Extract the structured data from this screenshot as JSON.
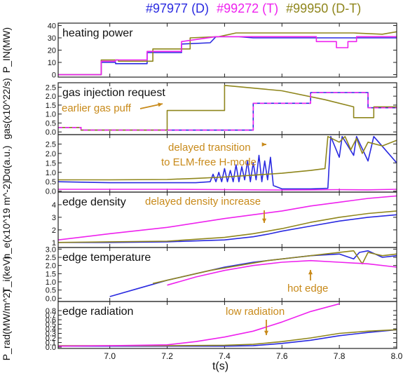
{
  "legend": [
    {
      "label": "#97977 (D)",
      "color": "#2a2ae0"
    },
    {
      "label": "#99272 (T)",
      "color": "#ee22ee"
    },
    {
      "label": "#99950 (D-T)",
      "color": "#8f861c"
    }
  ],
  "x_label": "t(s)",
  "x_ticks": [
    "7.0",
    "7.2",
    "7.4",
    "7.6",
    "7.8",
    "8.0"
  ],
  "chart_data": [
    {
      "type": "line",
      "title": "heating power",
      "ylabel": "P_IN(MW)",
      "ylim": [
        -2,
        42
      ],
      "yticks": [
        "0",
        "10",
        "20",
        "30",
        "40"
      ],
      "annotations": [],
      "series": [
        {
          "name": "#97977 (D)",
          "x": [
            6.82,
            6.97,
            6.97,
            7.02,
            7.02,
            7.13,
            7.13,
            7.25,
            7.25,
            7.35,
            7.37,
            7.45,
            7.5,
            7.6,
            7.7,
            7.8,
            7.9,
            8.0
          ],
          "y": [
            0,
            0,
            10,
            10,
            9,
            9,
            18,
            18,
            25,
            26,
            31,
            31,
            30,
            30,
            30,
            30,
            30,
            30
          ]
        },
        {
          "name": "#99272 (T)",
          "x": [
            6.82,
            6.97,
            6.97,
            7.02,
            7.02,
            7.13,
            7.13,
            7.25,
            7.25,
            7.37,
            7.45,
            7.72,
            7.72,
            7.79,
            7.79,
            7.83,
            7.83,
            7.86,
            7.86,
            8.0
          ],
          "y": [
            0,
            0,
            11,
            11,
            12,
            12,
            19,
            19,
            27,
            31,
            31,
            31,
            27,
            27,
            22,
            22,
            27,
            27,
            31,
            31
          ]
        },
        {
          "name": "#99950 (D-T)",
          "x": [
            6.82,
            6.97,
            6.97,
            7.03,
            7.03,
            7.15,
            7.15,
            7.28,
            7.28,
            7.38,
            7.44,
            7.5,
            7.6,
            7.75,
            7.85,
            7.95,
            8.0
          ],
          "y": [
            0,
            0,
            12,
            12,
            11,
            11,
            21,
            21,
            30,
            31,
            34,
            34,
            34,
            34,
            34,
            33,
            35
          ]
        }
      ]
    },
    {
      "type": "line",
      "title": "gas injection request",
      "ylabel": "gas(x10^22/s)",
      "ylim": [
        -0.15,
        2.75
      ],
      "yticks": [
        "0.0",
        "0.5",
        "1.0",
        "1.5",
        "2.0",
        "2.5"
      ],
      "annotations": [
        "earlier gas puff"
      ],
      "series": [
        {
          "name": "#97977 (D)",
          "x": [
            6.82,
            6.9,
            6.9,
            7.2,
            7.5,
            7.5,
            7.7,
            7.7,
            7.9,
            7.9,
            8.0
          ],
          "y": [
            0.25,
            0.25,
            0.1,
            0.1,
            0.1,
            1.6,
            1.6,
            2.2,
            2.2,
            1.35,
            1.35
          ]
        },
        {
          "name": "#99272 (T)",
          "x": [
            6.82,
            6.9,
            6.9,
            7.2,
            7.5,
            7.5,
            7.7,
            7.7,
            7.9,
            7.9,
            8.0
          ],
          "y": [
            0.25,
            0.25,
            0.1,
            0.1,
            0.1,
            1.6,
            1.6,
            2.2,
            2.2,
            1.35,
            1.35
          ]
        },
        {
          "name": "#99950 (D-T)",
          "x": [
            6.82,
            6.9,
            6.9,
            7.2,
            7.2,
            7.4,
            7.4,
            7.6,
            7.75,
            7.85,
            7.85,
            7.92,
            7.92,
            8.0
          ],
          "y": [
            0.25,
            0.25,
            0.1,
            0.1,
            1.2,
            1.2,
            2.6,
            2.3,
            1.8,
            1.4,
            0.8,
            0.8,
            1.4,
            1.4
          ]
        }
      ]
    },
    {
      "type": "line",
      "title": "",
      "ylabel": "Dα(a.u.)",
      "ylim": [
        -0.05,
        3.0
      ],
      "yticks": [
        "0.0",
        "0.5",
        "1.0",
        "1.5",
        "2.0",
        "2.5"
      ],
      "annotations": [
        "delayed transition",
        "to ELM-free H-mode"
      ],
      "series": [
        {
          "name": "#97977 (D)",
          "x": [
            6.82,
            6.9,
            7.0,
            7.1,
            7.2,
            7.3,
            7.35,
            7.36,
            7.37,
            7.38,
            7.39,
            7.4,
            7.41,
            7.42,
            7.43,
            7.44,
            7.45,
            7.46,
            7.47,
            7.48,
            7.49,
            7.5,
            7.51,
            7.52,
            7.53,
            7.54,
            7.55,
            7.56,
            7.57,
            7.6,
            7.7,
            7.76,
            7.77,
            7.8,
            7.81,
            7.85,
            7.86,
            7.9,
            7.92,
            8.0
          ],
          "y": [
            0.5,
            0.48,
            0.45,
            0.45,
            0.45,
            0.45,
            0.5,
            0.9,
            0.5,
            1.0,
            0.5,
            1.2,
            0.5,
            1.1,
            0.5,
            1.4,
            0.5,
            1.3,
            0.6,
            1.6,
            0.5,
            1.5,
            0.6,
            1.9,
            0.5,
            1.6,
            0.6,
            1.8,
            0.3,
            0.12,
            0.12,
            0.15,
            2.9,
            1.8,
            2.9,
            1.9,
            2.9,
            1.6,
            2.9,
            1.5
          ]
        },
        {
          "name": "#99272 (T)",
          "x": [
            6.82,
            7.0,
            7.2,
            7.4,
            7.6,
            7.7,
            7.8,
            7.9,
            8.0
          ],
          "y": [
            0.1,
            0.1,
            0.1,
            0.08,
            0.06,
            0.07,
            0.08,
            0.07,
            0.1
          ]
        },
        {
          "name": "#99950 (D-T)",
          "x": [
            6.82,
            7.0,
            7.2,
            7.3,
            7.4,
            7.5,
            7.6,
            7.7,
            7.75,
            7.76,
            7.8,
            7.82,
            7.84,
            7.86,
            7.88,
            7.9,
            7.95,
            8.0
          ],
          "y": [
            0.6,
            0.6,
            0.62,
            0.68,
            0.75,
            0.85,
            0.95,
            1.1,
            1.2,
            2.9,
            2.6,
            2.9,
            2.2,
            2.8,
            2.0,
            2.6,
            2.4,
            2.7
          ]
        }
      ]
    },
    {
      "type": "line",
      "title": "edge density",
      "ylabel": "n_e(x10^19 m^-2)",
      "ylim": [
        0.6,
        5.0
      ],
      "yticks": [
        "1",
        "2",
        "3",
        "4"
      ],
      "annotations": [
        "delayed density increase"
      ],
      "series": [
        {
          "name": "#97977 (D)",
          "x": [
            6.82,
            7.0,
            7.2,
            7.4,
            7.5,
            7.55,
            7.6,
            7.7,
            7.8,
            7.9,
            8.0
          ],
          "y": [
            1.0,
            1.0,
            1.05,
            1.2,
            1.45,
            1.65,
            1.9,
            2.3,
            2.7,
            3.0,
            3.2
          ]
        },
        {
          "name": "#99272 (T)",
          "x": [
            6.82,
            7.0,
            7.2,
            7.4,
            7.6,
            7.7,
            7.8,
            7.9,
            8.0
          ],
          "y": [
            1.2,
            1.7,
            2.2,
            2.9,
            3.5,
            3.9,
            4.2,
            4.5,
            4.7
          ]
        },
        {
          "name": "#99950 (D-T)",
          "x": [
            6.82,
            7.0,
            7.2,
            7.4,
            7.5,
            7.6,
            7.7,
            7.8,
            7.9,
            8.0
          ],
          "y": [
            1.0,
            1.05,
            1.1,
            1.4,
            1.7,
            2.1,
            2.6,
            3.0,
            3.3,
            3.5
          ]
        }
      ]
    },
    {
      "type": "line",
      "title": "edge temperature",
      "ylabel": "T_i(keV)",
      "ylim": [
        -0.2,
        3.1
      ],
      "yticks": [
        "0.0",
        "0.5",
        "1.0",
        "1.5",
        "2.0",
        "2.5",
        "3.0"
      ],
      "annotations": [
        "hot edge"
      ],
      "series": [
        {
          "name": "#97977 (D)",
          "x": [
            7.0,
            7.1,
            7.2,
            7.3,
            7.4,
            7.5,
            7.6,
            7.7,
            7.8,
            7.85,
            7.87,
            7.9,
            7.95,
            8.0
          ],
          "y": [
            0.1,
            0.6,
            1.1,
            1.5,
            1.9,
            2.2,
            2.4,
            2.6,
            2.7,
            2.4,
            2.8,
            2.9,
            2.5,
            2.6
          ]
        },
        {
          "name": "#99272 (T)",
          "x": [
            7.2,
            7.3,
            7.4,
            7.5,
            7.6,
            7.7,
            7.8,
            7.9,
            8.0
          ],
          "y": [
            0.8,
            1.3,
            1.7,
            2.0,
            2.2,
            2.3,
            2.2,
            2.1,
            1.9
          ]
        },
        {
          "name": "#99950 (D-T)",
          "x": [
            7.15,
            7.25,
            7.35,
            7.45,
            7.55,
            7.65,
            7.75,
            7.85,
            7.88,
            7.9,
            7.95,
            8.0
          ],
          "y": [
            0.9,
            1.3,
            1.7,
            2.0,
            2.3,
            2.5,
            2.7,
            2.9,
            2.1,
            2.8,
            2.6,
            2.7
          ]
        }
      ]
    },
    {
      "type": "line",
      "title": "edge radiation",
      "ylabel": "P_rad(MW/m^2)",
      "ylim": [
        -0.03,
        1.0
      ],
      "yticks": [
        "0.0",
        "0.1",
        "0.2",
        "0.3",
        "0.4",
        "0.5",
        "0.6",
        "0.7",
        "0.8"
      ],
      "annotations": [
        "low radiation"
      ],
      "series": [
        {
          "name": "#97977 (D)",
          "x": [
            6.82,
            7.0,
            7.2,
            7.4,
            7.5,
            7.6,
            7.7,
            7.8,
            7.9,
            8.0
          ],
          "y": [
            0.02,
            0.02,
            0.02,
            0.02,
            0.03,
            0.08,
            0.15,
            0.25,
            0.32,
            0.38
          ]
        },
        {
          "name": "#99272 (T)",
          "x": [
            6.82,
            7.0,
            7.2,
            7.3,
            7.4,
            7.5,
            7.6,
            7.7,
            7.8
          ],
          "y": [
            0.02,
            0.03,
            0.05,
            0.12,
            0.22,
            0.35,
            0.55,
            0.78,
            0.95
          ]
        },
        {
          "name": "#99950 (D-T)",
          "x": [
            6.82,
            7.0,
            7.2,
            7.4,
            7.5,
            7.6,
            7.7,
            7.8,
            7.9,
            8.0
          ],
          "y": [
            0.03,
            0.03,
            0.03,
            0.04,
            0.06,
            0.12,
            0.2,
            0.3,
            0.35,
            0.38
          ]
        }
      ]
    }
  ]
}
